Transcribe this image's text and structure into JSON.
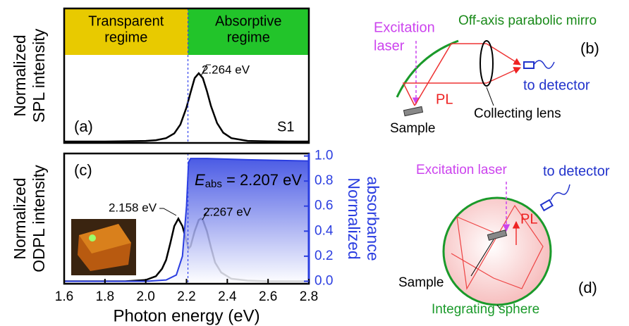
{
  "chart_data": [
    {
      "type": "line",
      "panel_label": "(a)",
      "sample_label": "S1",
      "ylabel": [
        "Normalized",
        "SPL intensity"
      ],
      "xlim": [
        1.6,
        2.8
      ],
      "ylim": [
        -0.02,
        1.95
      ],
      "marker_line": 2.207,
      "regions": [
        {
          "label": [
            "Transparent",
            "regime"
          ],
          "from": 1.6,
          "to": 2.207,
          "color": "#e8ca00"
        },
        {
          "label": [
            "Absorptive",
            "regime"
          ],
          "from": 2.207,
          "to": 2.8,
          "color": "#22c42a"
        }
      ],
      "annotations": [
        {
          "text": "2.264 eV",
          "x": 2.264
        }
      ],
      "x": [
        1.6,
        1.7,
        1.8,
        1.9,
        2.0,
        2.05,
        2.1,
        2.14,
        2.17,
        2.2,
        2.22,
        2.24,
        2.26,
        2.28,
        2.3,
        2.32,
        2.35,
        2.38,
        2.42,
        2.5,
        2.6,
        2.7,
        2.8
      ],
      "series": [
        {
          "color": "#000000",
          "values": [
            0,
            0,
            0,
            0.005,
            0.01,
            0.02,
            0.05,
            0.12,
            0.25,
            0.5,
            0.72,
            0.93,
            1.0,
            0.93,
            0.74,
            0.52,
            0.27,
            0.13,
            0.05,
            0.01,
            0.003,
            0,
            0
          ]
        }
      ]
    },
    {
      "type": "line",
      "panel_label": "(c)",
      "xlabel": "Photon energy (eV)",
      "ylabel": [
        "Normalized",
        "ODPL intensity"
      ],
      "y2label": [
        "Normalized",
        "absorbance"
      ],
      "xlim": [
        1.6,
        2.8
      ],
      "ylim": [
        -0.02,
        1.02
      ],
      "y2lim": [
        -0.02,
        1.02
      ],
      "marker_line": 2.207,
      "xticks": [
        1.6,
        1.8,
        {
          "value": 2,
          "label": "2.0"
        },
        2.2,
        2.4,
        2.6,
        2.8
      ],
      "y2ticks": [
        {
          "value": 0,
          "label": "0.0"
        },
        0.2,
        0.4,
        0.6,
        0.8,
        {
          "value": 1,
          "label": "1.0"
        }
      ],
      "annotations": [
        {
          "text": "2.158 eV",
          "x": 2.158
        },
        {
          "text": "2.267 eV",
          "x": 2.267
        }
      ],
      "eabs": {
        "symbol": "E",
        "subscript": "abs",
        "text": " = 2.207 eV"
      },
      "series": [
        {
          "color": "#000000",
          "x": [
            1.6,
            1.9,
            2.0,
            2.05,
            2.08,
            2.1,
            2.12,
            2.14,
            2.16,
            2.18,
            2.2,
            2.21,
            2.22,
            2.24,
            2.26,
            2.27,
            2.28,
            2.3,
            2.32,
            2.34,
            2.37,
            2.42,
            2.5,
            2.6,
            2.8
          ],
          "values": [
            0,
            0,
            0.01,
            0.04,
            0.1,
            0.17,
            0.3,
            0.44,
            0.5,
            0.44,
            0.32,
            0.26,
            0.28,
            0.4,
            0.49,
            0.5,
            0.49,
            0.4,
            0.27,
            0.15,
            0.07,
            0.02,
            0.005,
            0,
            0
          ]
        },
        {
          "color": "#2b3ee0",
          "axis": "y2",
          "fill": true,
          "x": [
            1.6,
            2.0,
            2.1,
            2.15,
            2.18,
            2.2,
            2.21,
            2.22,
            2.3,
            2.5,
            2.8
          ],
          "values": [
            0,
            0,
            0.01,
            0.05,
            0.2,
            0.6,
            0.95,
            0.98,
            0.98,
            0.97,
            0.96
          ]
        }
      ]
    }
  ],
  "diagram_b": {
    "label": "(b)",
    "excitation": [
      "Excitation",
      "laser"
    ],
    "mirror": "Off-axis parabolic mirro",
    "pl": "PL",
    "sample": "Sample",
    "lens": "Collecting lens",
    "detector": "to detector"
  },
  "diagram_d": {
    "label": "(d)",
    "excitation": "Excitation laser",
    "pl": "PL",
    "sample": "Sample",
    "sphere": "Integrating sphere",
    "detector": "to detector"
  }
}
